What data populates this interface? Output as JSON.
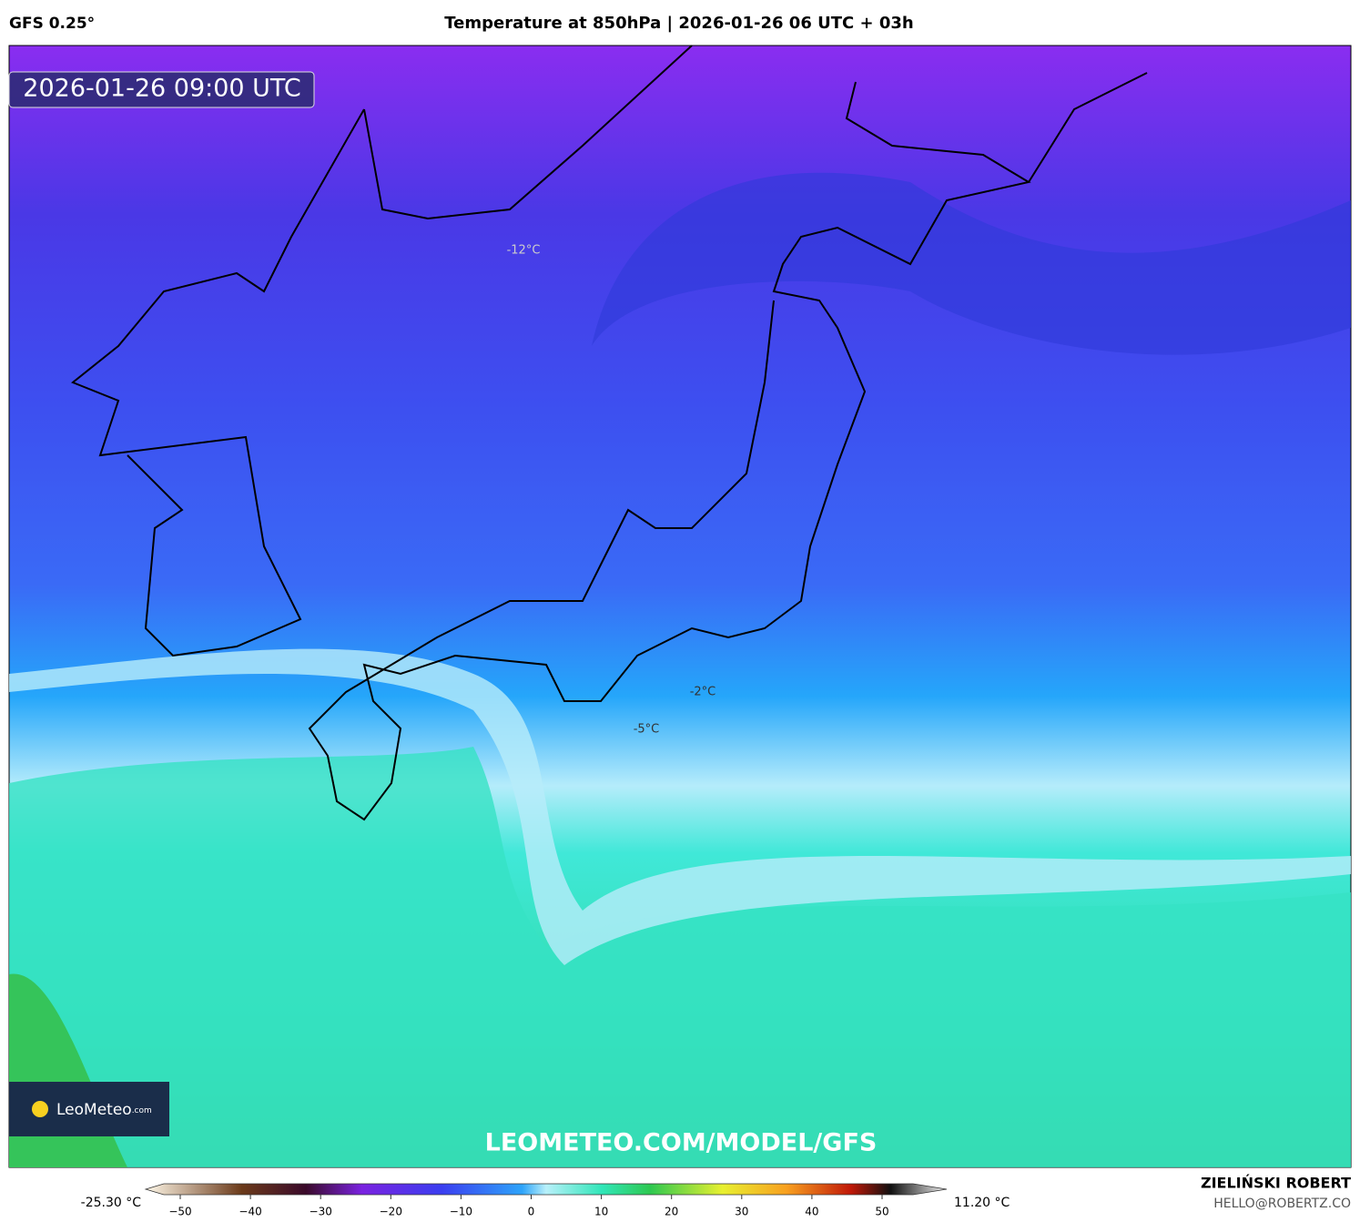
{
  "header": {
    "model": "GFS 0.25°",
    "title": "Temperature at 850hPa | 2026-01-26 06 UTC + 03h"
  },
  "map": {
    "timestamp": "2026-01-26 09:00 UTC",
    "contour_labels": [
      "-12°C",
      "-2°C",
      "-5°C"
    ],
    "watermark": "LEOMETEO.COM/MODEL/GFS",
    "logo": {
      "name": "LeoMeteo",
      "suffix": ".com"
    }
  },
  "colorbar": {
    "min_label": "-25.30 °C",
    "max_label": "11.20 °C",
    "ticks": [
      {
        "value": -50,
        "label": "−50"
      },
      {
        "value": -40,
        "label": "−40"
      },
      {
        "value": -30,
        "label": "−30"
      },
      {
        "value": -20,
        "label": "−20"
      },
      {
        "value": -10,
        "label": "−10"
      },
      0,
      10,
      20,
      30,
      40,
      50
    ]
  },
  "footer": {
    "author": "ZIELIŃSKI ROBERT",
    "email": "HELLO@ROBERTZ.CO"
  }
}
